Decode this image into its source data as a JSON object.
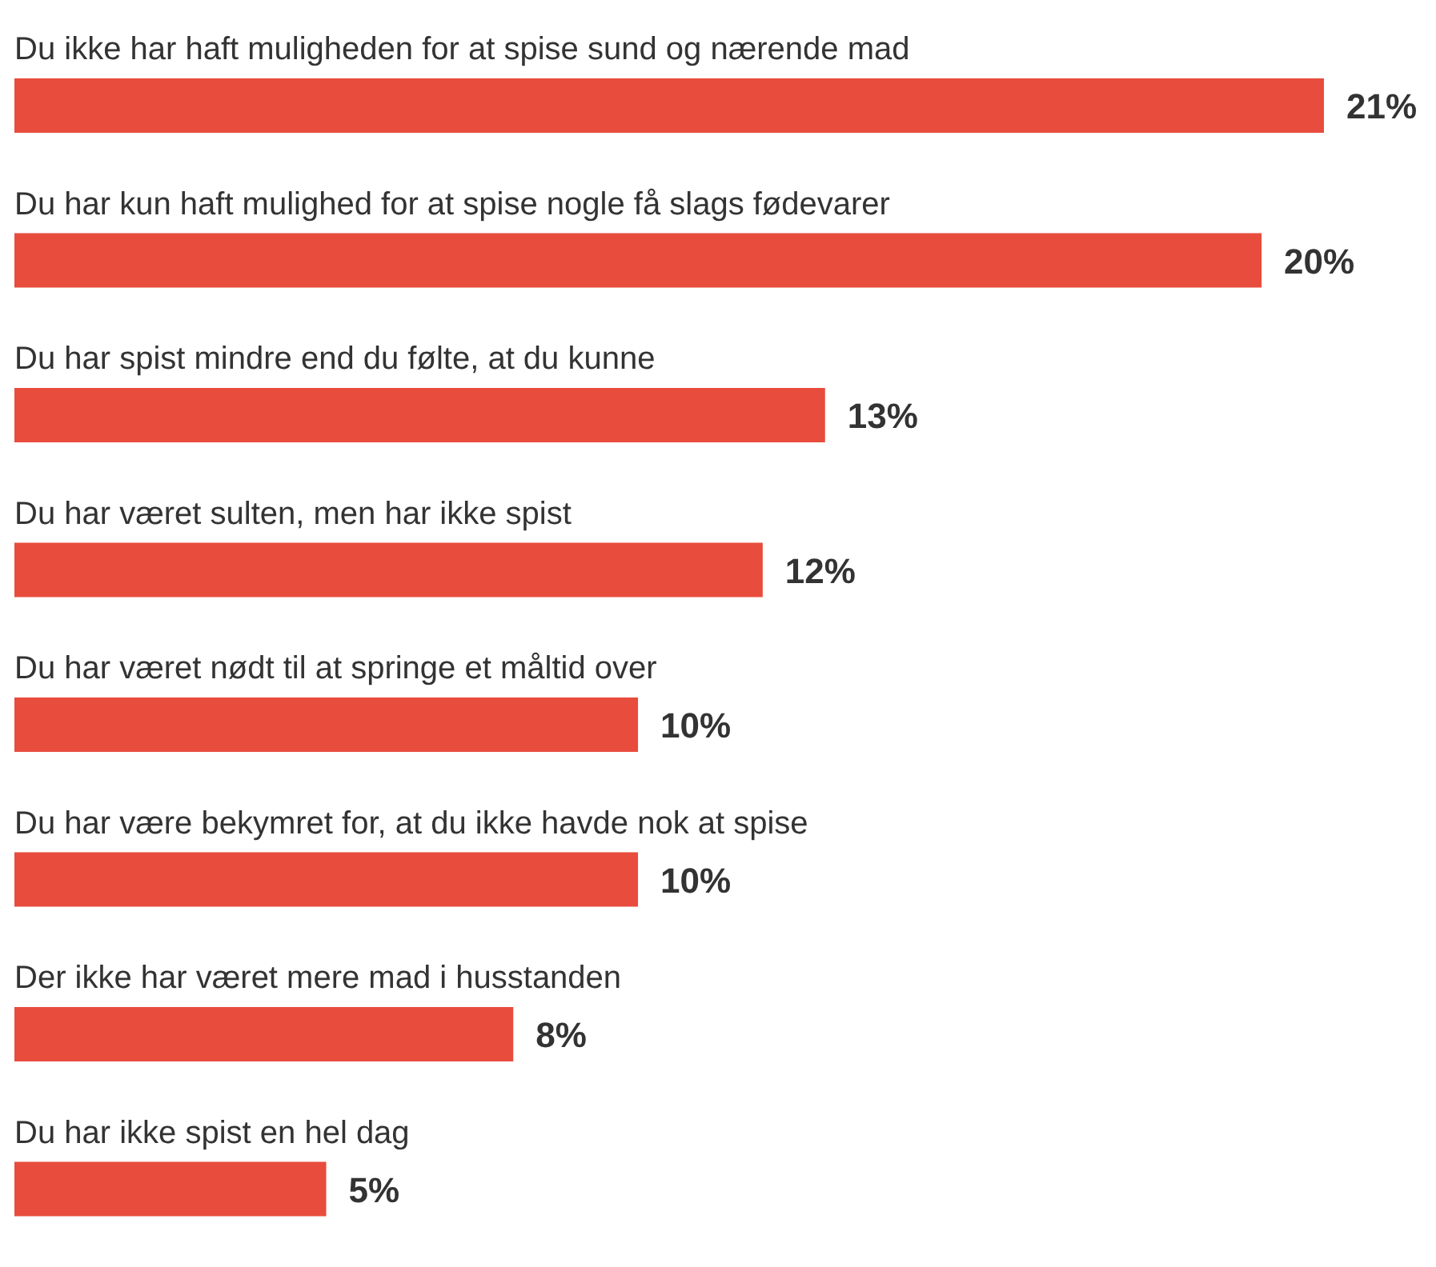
{
  "chart_data": {
    "type": "bar",
    "orientation": "horizontal",
    "categories": [
      "Du ikke har haft muligheden for at spise sund og nærende mad",
      "Du har kun haft mulighed for at spise nogle få slags fødevarer",
      "Du har spist mindre end du følte, at du kunne",
      "Du har været sulten, men har ikke spist",
      "Du har været nødt til at springe et måltid over",
      "Du har være bekymret for, at du ikke havde nok at spise",
      "Der ikke har været mere mad i husstanden",
      "Du har ikke spist en hel dag"
    ],
    "values": [
      21,
      20,
      13,
      12,
      10,
      10,
      8,
      5
    ],
    "value_labels": [
      "21%",
      "20%",
      "13%",
      "12%",
      "10%",
      "10%",
      "8%",
      "5%"
    ],
    "color": "#e84c3d",
    "grid": false,
    "legend": false
  }
}
